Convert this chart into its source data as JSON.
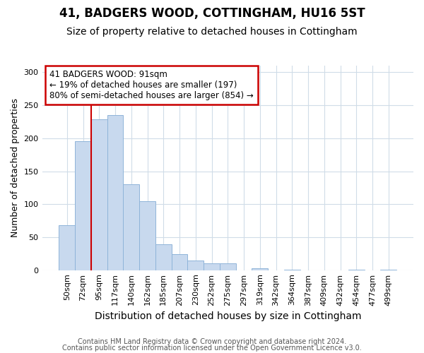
{
  "title1": "41, BADGERS WOOD, COTTINGHAM, HU16 5ST",
  "title2": "Size of property relative to detached houses in Cottingham",
  "xlabel": "Distribution of detached houses by size in Cottingham",
  "ylabel": "Number of detached properties",
  "categories": [
    "50sqm",
    "72sqm",
    "95sqm",
    "117sqm",
    "140sqm",
    "162sqm",
    "185sqm",
    "207sqm",
    "230sqm",
    "252sqm",
    "275sqm",
    "297sqm",
    "319sqm",
    "342sqm",
    "364sqm",
    "387sqm",
    "409sqm",
    "432sqm",
    "454sqm",
    "477sqm",
    "499sqm"
  ],
  "values": [
    68,
    196,
    229,
    235,
    130,
    104,
    39,
    24,
    15,
    10,
    10,
    0,
    3,
    0,
    1,
    0,
    0,
    0,
    1,
    0,
    1
  ],
  "bar_color": "#c8d9ee",
  "bar_edge_color": "#8fb4d9",
  "vline_color": "#cc0000",
  "vline_position": 1.5,
  "annotation_text": "41 BADGERS WOOD: 91sqm\n← 19% of detached houses are smaller (197)\n80% of semi-detached houses are larger (854) →",
  "annotation_box_facecolor": "#ffffff",
  "annotation_box_edgecolor": "#cc0000",
  "ylim": [
    0,
    310
  ],
  "yticks": [
    0,
    50,
    100,
    150,
    200,
    250,
    300
  ],
  "footer1": "Contains HM Land Registry data © Crown copyright and database right 2024.",
  "footer2": "Contains public sector information licensed under the Open Government Licence v3.0.",
  "bg_color": "#ffffff",
  "plot_bg_color": "#ffffff",
  "grid_color": "#d0dce8",
  "title1_fontsize": 12,
  "title2_fontsize": 10,
  "xlabel_fontsize": 10,
  "ylabel_fontsize": 9,
  "tick_fontsize": 8,
  "footer_fontsize": 7
}
